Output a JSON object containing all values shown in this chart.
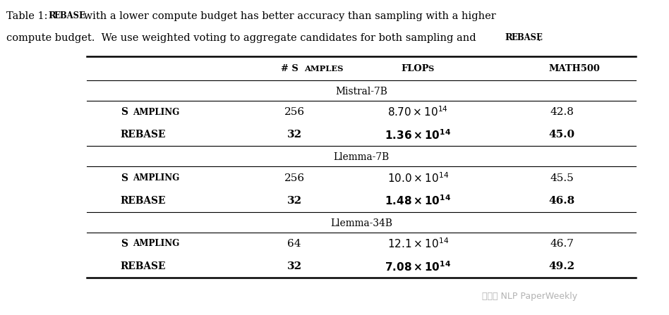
{
  "caption": "Table 1: REBASE with a lower compute budget has better accuracy than sampling with a higher compute budget. We use weighted voting to aggregate candidates for both sampling and REBASE.",
  "caption_normal": "Table 1: ",
  "caption_smallcaps_1": "Rebase",
  "caption_rest": " with a lower compute budget has better accuracy than sampling with a higher\ncompute budget. We use weighted voting to aggregate candidates for both sampling and ",
  "caption_smallcaps_2": "Rebase",
  "caption_end": ".",
  "col_headers": [
    "",
    "# Samples",
    "FLOPs",
    "MATH500"
  ],
  "sections": [
    {
      "name": "Mistral-7B",
      "rows": [
        {
          "method": "Sampling",
          "samples": "256",
          "flops": "8.70 × 10^{14}",
          "math500": "42.8",
          "bold": false
        },
        {
          "method": "Rebase",
          "samples": "32",
          "flops": "1.36 × 10^{14}",
          "math500": "45.0",
          "bold": true
        }
      ]
    },
    {
      "name": "Llemma-7B",
      "rows": [
        {
          "method": "Sampling",
          "samples": "256",
          "flops": "10.0 × 10^{14}",
          "math500": "45.5",
          "bold": false
        },
        {
          "method": "Rebase",
          "samples": "32",
          "flops": "1.48 × 10^{14}",
          "math500": "46.8",
          "bold": true
        }
      ]
    },
    {
      "name": "Llemma-34B",
      "rows": [
        {
          "method": "Sampling",
          "samples": "64",
          "flops": "12.1 × 10^{14}",
          "math500": "46.7",
          "bold": false
        },
        {
          "method": "Rebase",
          "samples": "32",
          "flops": "7.08 × 10^{14}",
          "math500": "49.2",
          "bold": true
        }
      ]
    }
  ],
  "watermark": "公众号 NLP PaperWeekly",
  "bg_color": "#ffffff",
  "text_color": "#000000",
  "line_color": "#000000",
  "font_size": 11,
  "caption_font_size": 10.5
}
